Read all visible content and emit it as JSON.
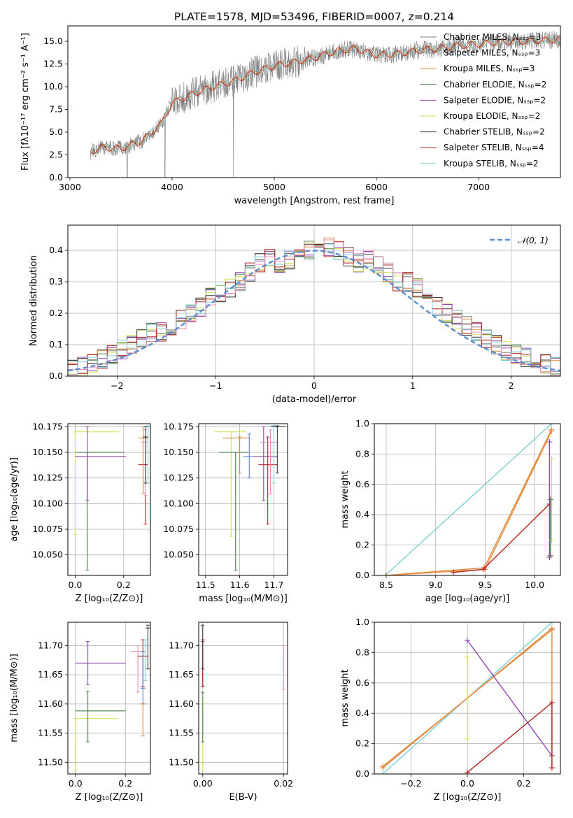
{
  "colors": {
    "Chabrier MILES": "#7f7f7f",
    "Salpeter MILES": "#9a9a9a",
    "Kroupa MILES": "#d6883a",
    "Chabrier ELODIE": "#4c7f4c",
    "Salpeter ELODIE": "#8e44ad",
    "Kroupa ELODIE": "#d4e157",
    "Chabrier STELIB": "#3a3a3a",
    "Salpeter STELIB": "#b22222",
    "Kroupa STELIB": "#7ecfd4",
    "Pink": "#e88fb8",
    "Blue": "#5b7fd6",
    "Orange": "#f08a3c",
    "Normal": "#5b8bd0"
  },
  "chart_data": [
    {
      "id": "spectrum",
      "type": "line",
      "title": "PLATE=1578, MJD=53496, FIBERID=0007, z=0.214",
      "xlabel": "wavelength [Angstrom, rest frame]",
      "ylabel": "Flux [fλ10⁻¹⁷ erg cm⁻² s⁻¹ A⁻¹]",
      "xlim": [
        2980,
        7800
      ],
      "ylim": [
        0,
        16.7
      ],
      "xticks": [
        3000,
        4000,
        5000,
        6000,
        7000
      ],
      "yticks": [
        0.0,
        2.5,
        5.0,
        7.5,
        10.0,
        12.5,
        15.0
      ],
      "grid": false,
      "legend_position": "top-right",
      "legend": [
        "Chabrier MILES, Nₛₛₚ=3",
        "Salpeter MILES, Nₛₛₚ=3",
        "Kroupa MILES, Nₛₛₚ=3",
        "Chabrier ELODIE, Nₛₛₚ=2",
        "Salpeter ELODIE, Nₛₛₚ=2",
        "Kroupa ELODIE, Nₛₛₚ=2",
        "Chabrier STELIB, Nₛₛₚ=2",
        "Salpeter STELIB, Nₛₛₚ=4",
        "Kroupa STELIB, Nₛₛₚ=2"
      ],
      "legend_colors": [
        "Chabrier MILES",
        "Salpeter MILES",
        "Kroupa MILES",
        "Chabrier ELODIE",
        "Salpeter ELODIE",
        "Kroupa ELODIE",
        "Chabrier STELIB",
        "Salpeter STELIB",
        "Kroupa STELIB"
      ],
      "continuum": {
        "x": [
          3200,
          3300,
          3500,
          3700,
          3900,
          4000,
          4200,
          4400,
          4600,
          4800,
          5000,
          5200,
          5400,
          5600,
          5800,
          6000,
          6200,
          6400,
          6600,
          6800,
          7000,
          7200,
          7400,
          7800
        ],
        "y": [
          2.8,
          3.3,
          3.2,
          4.0,
          6.0,
          8.2,
          9.2,
          10.0,
          10.6,
          11.6,
          12.3,
          12.7,
          13.2,
          13.9,
          14.2,
          13.5,
          13.6,
          14.0,
          14.2,
          14.5,
          14.7,
          14.9,
          15.0,
          15.2
        ]
      }
    },
    {
      "id": "residuals",
      "type": "line",
      "xlabel": "(data-model)/error",
      "ylabel": "Normed distribution",
      "xlim": [
        -2.5,
        2.5
      ],
      "ylim": [
        0,
        0.48
      ],
      "xticks": [
        -2,
        -1,
        0,
        1,
        2
      ],
      "yticks": [
        0.0,
        0.1,
        0.2,
        0.3,
        0.4
      ],
      "grid": true,
      "legend_position": "top-right",
      "legend": [
        "𝒩(0, 1)"
      ],
      "normal": {
        "mean": 0,
        "sigma": 1
      },
      "hist_bin_width": 0.1,
      "hist_base": [
        0.025,
        0.03,
        0.04,
        0.055,
        0.07,
        0.085,
        0.1,
        0.12,
        0.14,
        0.14,
        0.16,
        0.18,
        0.2,
        0.22,
        0.25,
        0.26,
        0.28,
        0.3,
        0.33,
        0.36,
        0.38,
        0.36,
        0.37,
        0.39,
        0.4,
        0.39,
        0.41,
        0.4,
        0.38,
        0.36,
        0.37,
        0.35,
        0.33,
        0.3,
        0.3,
        0.28,
        0.24,
        0.22,
        0.2,
        0.18,
        0.16,
        0.14,
        0.12,
        0.1,
        0.08,
        0.07,
        0.06,
        0.05,
        0.04,
        0.03
      ]
    },
    {
      "id": "age-vs-Z",
      "type": "scatter",
      "xlabel": "Z [log₁₀(Z/Z⊙)]",
      "ylabel": "age  [log₁₀(age/yr)]",
      "xlim": [
        -0.03,
        0.31
      ],
      "ylim": [
        10.03,
        10.178
      ],
      "xticks": [
        0.0,
        0.2
      ],
      "yticks": [
        10.05,
        10.075,
        10.1,
        10.125,
        10.15,
        10.175
      ],
      "grid": true,
      "points": [
        {
          "color": "Kroupa ELODIE",
          "x": 0.0,
          "xerr": [
            0.0,
            0.18
          ],
          "y": 10.17,
          "yerr": [
            10.07,
            10.17
          ]
        },
        {
          "color": "Chabrier ELODIE",
          "x": 0.05,
          "xerr": [
            0.0,
            0.2
          ],
          "y": 10.15,
          "yerr": [
            10.035,
            10.15
          ]
        },
        {
          "color": "Salpeter ELODIE",
          "x": 0.05,
          "xerr": [
            0.0,
            0.21
          ],
          "y": 10.146,
          "yerr": [
            10.103,
            10.175
          ]
        },
        {
          "color": "Salpeter STELIB",
          "x": 0.29,
          "xerr": [
            0.26,
            0.3
          ],
          "y": 10.138,
          "yerr": [
            10.08,
            10.165
          ]
        },
        {
          "color": "Kroupa MILES",
          "x": 0.28,
          "xerr": [
            0.26,
            0.3
          ],
          "y": 10.164,
          "yerr": [
            10.11,
            10.175
          ]
        },
        {
          "color": "Pink",
          "x": 0.29,
          "xerr": [
            0.27,
            0.3
          ],
          "y": 10.16,
          "yerr": [
            10.108,
            10.172
          ]
        },
        {
          "color": "Kroupa STELIB",
          "x": 0.3,
          "xerr": [
            0.28,
            0.31
          ],
          "y": 10.175,
          "yerr": [
            10.12,
            10.176
          ]
        },
        {
          "color": "Chabrier STELIB",
          "x": 0.29,
          "xerr": [
            0.28,
            0.3
          ],
          "y": 10.165,
          "yerr": [
            10.12,
            10.175
          ]
        }
      ]
    },
    {
      "id": "age-vs-mass",
      "type": "scatter",
      "xlabel": "mass [log₁₀(M/M⊙)]",
      "ylabel": "",
      "xlim": [
        11.48,
        11.74
      ],
      "ylim": [
        10.03,
        10.178
      ],
      "xticks": [
        11.5,
        11.6,
        11.7
      ],
      "yticks": [
        10.05,
        10.075,
        10.1,
        10.125,
        10.15,
        10.175
      ],
      "grid": true,
      "points": [
        {
          "color": "Kroupa ELODIE",
          "x": 11.575,
          "xerr": [
            11.525,
            11.62
          ],
          "y": 10.17,
          "yerr": [
            10.068,
            10.17
          ]
        },
        {
          "color": "Chabrier ELODIE",
          "x": 11.588,
          "xerr": [
            11.54,
            11.625
          ],
          "y": 10.15,
          "yerr": [
            10.035,
            10.15
          ]
        },
        {
          "color": "Kroupa MILES",
          "x": 11.6,
          "xerr": [
            11.55,
            11.63
          ],
          "y": 10.164,
          "yerr": [
            10.13,
            10.165
          ]
        },
        {
          "color": "Blue",
          "x": 11.628,
          "xerr": [
            11.61,
            11.64
          ],
          "y": 10.146,
          "yerr": [
            10.125,
            10.168
          ]
        },
        {
          "color": "Salpeter ELODIE",
          "x": 11.67,
          "xerr": [
            11.64,
            11.71
          ],
          "y": 10.146,
          "yerr": [
            10.103,
            10.175
          ]
        },
        {
          "color": "Salpeter STELIB",
          "x": 11.682,
          "xerr": [
            11.655,
            11.71
          ],
          "y": 10.138,
          "yerr": [
            10.08,
            10.165
          ]
        },
        {
          "color": "Pink",
          "x": 11.69,
          "xerr": [
            11.66,
            11.71
          ],
          "y": 10.16,
          "yerr": [
            10.11,
            10.172
          ]
        },
        {
          "color": "Kroupa STELIB",
          "x": 11.7,
          "xerr": [
            11.68,
            11.72
          ],
          "y": 10.175,
          "yerr": [
            10.12,
            10.176
          ]
        },
        {
          "color": "Chabrier STELIB",
          "x": 11.71,
          "xerr": [
            11.69,
            11.735
          ],
          "y": 10.175,
          "yerr": [
            10.13,
            10.176
          ]
        }
      ]
    },
    {
      "id": "weight-vs-age",
      "type": "line",
      "xlabel": "age  [log₁₀(age/yr)]",
      "ylabel": "mass weight",
      "xlim": [
        8.38,
        10.26
      ],
      "ylim": [
        0,
        1.0
      ],
      "xticks": [
        8.5,
        9.0,
        9.5,
        10.0
      ],
      "yticks": [
        0.0,
        0.2,
        0.4,
        0.6,
        0.8,
        1.0
      ],
      "grid": true,
      "series": [
        {
          "color": "Kroupa STELIB",
          "x": [
            8.49,
            10.17
          ],
          "y": [
            0.0,
            1.0
          ]
        },
        {
          "color": "Kroupa MILES",
          "x": [
            8.5,
            9.49,
            10.17
          ],
          "y": [
            0.0,
            0.05,
            0.96
          ]
        },
        {
          "color": "Orange",
          "x": [
            8.5,
            9.5,
            10.17
          ],
          "y": [
            0.0,
            0.04,
            0.95
          ]
        },
        {
          "color": "Salpeter STELIB",
          "x": [
            9.18,
            9.48,
            10.15
          ],
          "y": [
            0.02,
            0.04,
            0.47
          ]
        },
        {
          "color": "Salpeter ELODIE",
          "x": [
            10.15,
            10.15
          ],
          "y": [
            0.88,
            0.12
          ]
        },
        {
          "color": "Kroupa ELODIE",
          "x": [
            10.17,
            10.17
          ],
          "y": [
            0.77,
            0.23
          ]
        },
        {
          "color": "Chabrier ELODIE",
          "x": [
            10.16,
            10.16
          ],
          "y": [
            0.5,
            0.13
          ]
        }
      ]
    },
    {
      "id": "mass-vs-Z",
      "type": "scatter",
      "xlabel": "Z [log₁₀(Z/Z⊙)]",
      "ylabel": "mass [log₁₀(M/M⊙)]",
      "xlim": [
        -0.03,
        0.3
      ],
      "ylim": [
        11.48,
        11.74
      ],
      "xticks": [
        0.0,
        0.2
      ],
      "yticks": [
        11.5,
        11.55,
        11.6,
        11.65,
        11.7
      ],
      "grid": true,
      "points": [
        {
          "color": "Kroupa ELODIE",
          "x": 0.0,
          "xerr": [
            0.0,
            0.17
          ],
          "y": 11.575,
          "yerr": [
            11.485,
            11.575
          ]
        },
        {
          "color": "Chabrier ELODIE",
          "x": 0.05,
          "xerr": [
            0.0,
            0.2
          ],
          "y": 11.588,
          "yerr": [
            11.535,
            11.622
          ]
        },
        {
          "color": "Salpeter ELODIE",
          "x": 0.05,
          "xerr": [
            0.0,
            0.2
          ],
          "y": 11.67,
          "yerr": [
            11.633,
            11.707
          ]
        },
        {
          "color": "Pink",
          "x": 0.25,
          "xerr": [
            0.22,
            0.28
          ],
          "y": 11.69,
          "yerr": [
            11.62,
            11.7
          ]
        },
        {
          "color": "Salpeter STELIB",
          "x": 0.27,
          "xerr": [
            0.25,
            0.29
          ],
          "y": 11.682,
          "yerr": [
            11.63,
            11.71
          ]
        },
        {
          "color": "Blue",
          "x": 0.27,
          "xerr": [
            0.26,
            0.28
          ],
          "y": 11.627,
          "yerr": [
            11.6,
            11.69
          ]
        },
        {
          "color": "Kroupa MILES",
          "x": 0.27,
          "xerr": [
            0.26,
            0.28
          ],
          "y": 11.6,
          "yerr": [
            11.545,
            11.6
          ]
        },
        {
          "color": "Kroupa STELIB",
          "x": 0.28,
          "xerr": [
            0.27,
            0.29
          ],
          "y": 11.7,
          "yerr": [
            11.64,
            11.71
          ]
        },
        {
          "color": "Chabrier STELIB",
          "x": 0.29,
          "xerr": [
            0.28,
            0.3
          ],
          "y": 11.73,
          "yerr": [
            11.66,
            11.735
          ]
        }
      ]
    },
    {
      "id": "mass-vs-EBV",
      "type": "scatter",
      "xlabel": "E(B-V)",
      "ylabel": "",
      "xlim": [
        -0.001,
        0.021
      ],
      "ylim": [
        11.48,
        11.74
      ],
      "xticks": [
        0.0,
        0.02
      ],
      "yticks": [
        11.5,
        11.55,
        11.6,
        11.65,
        11.7
      ],
      "grid": true,
      "points": [
        {
          "color": "Kroupa ELODIE",
          "x": 0.0,
          "y": 11.575,
          "yerr": [
            11.485,
            11.6
          ]
        },
        {
          "color": "Chabrier ELODIE",
          "x": 0.0,
          "y": 11.588,
          "yerr": [
            11.535,
            11.62
          ]
        },
        {
          "color": "Salpeter ELODIE",
          "x": 0.0,
          "y": 11.67,
          "yerr": [
            11.63,
            11.707
          ]
        },
        {
          "color": "Salpeter STELIB",
          "x": 0.0,
          "y": 11.682,
          "yerr": [
            11.63,
            11.71
          ]
        },
        {
          "color": "Chabrier STELIB",
          "x": 0.0,
          "y": 11.73,
          "yerr": [
            11.66,
            11.735
          ]
        },
        {
          "color": "Pink",
          "x": 0.02,
          "y": 11.69,
          "yerr": [
            11.625,
            11.7
          ]
        }
      ]
    },
    {
      "id": "weight-vs-Z",
      "type": "line",
      "xlabel": "Z [log₁₀(Z/Z⊙)]",
      "ylabel": "mass weight",
      "xlim": [
        -0.33,
        0.33
      ],
      "ylim": [
        0,
        1.0
      ],
      "xticks": [
        -0.2,
        0.0,
        0.2
      ],
      "yticks": [
        0.0,
        0.2,
        0.4,
        0.6,
        0.8,
        1.0
      ],
      "grid": true,
      "series": [
        {
          "color": "Kroupa STELIB",
          "x": [
            -0.3,
            0.3
          ],
          "y": [
            0.0,
            1.0
          ]
        },
        {
          "color": "Kroupa MILES",
          "x": [
            -0.3,
            0.3,
            0.3
          ],
          "y": [
            0.04,
            0.96,
            0.04
          ]
        },
        {
          "color": "Orange",
          "x": [
            -0.3,
            0.3
          ],
          "y": [
            0.05,
            0.95
          ]
        },
        {
          "color": "Salpeter ELODIE",
          "x": [
            0.0,
            0.3
          ],
          "y": [
            0.88,
            0.12
          ]
        },
        {
          "color": "Salpeter STELIB",
          "x": [
            0.0,
            0.3,
            0.3
          ],
          "y": [
            0.01,
            0.47,
            0.04
          ]
        },
        {
          "color": "Kroupa ELODIE",
          "x": [
            0.0,
            0.0
          ],
          "y": [
            0.77,
            0.23
          ]
        }
      ]
    }
  ]
}
